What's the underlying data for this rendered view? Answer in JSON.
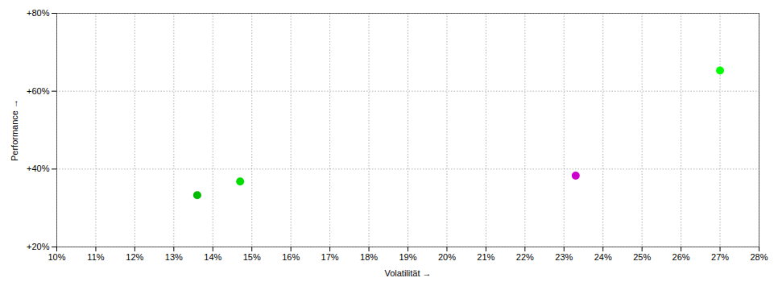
{
  "chart_data": {
    "type": "scatter",
    "xlabel": "Volatilität",
    "ylabel": "Performance",
    "x": [
      0.136,
      0.147,
      0.233,
      0.27
    ],
    "values": [
      0.333,
      0.368,
      0.383,
      0.653
    ],
    "colors": [
      "#00bb00",
      "#00dd00",
      "#cc00cc",
      "#00ff00"
    ],
    "xlim": [
      0.1,
      0.28
    ],
    "ylim": [
      0.2,
      0.8
    ],
    "xticks": [
      {
        "value": 0.1,
        "label": "10%"
      },
      {
        "value": 0.11,
        "label": "11%"
      },
      {
        "value": 0.12,
        "label": "12%"
      },
      {
        "value": 0.13,
        "label": "13%"
      },
      {
        "value": 0.14,
        "label": "14%"
      },
      {
        "value": 0.15,
        "label": "15%"
      },
      {
        "value": 0.16,
        "label": "16%"
      },
      {
        "value": 0.17,
        "label": "17%"
      },
      {
        "value": 0.18,
        "label": "18%"
      },
      {
        "value": 0.19,
        "label": "19%"
      },
      {
        "value": 0.2,
        "label": "20%"
      },
      {
        "value": 0.21,
        "label": "21%"
      },
      {
        "value": 0.22,
        "label": "22%"
      },
      {
        "value": 0.23,
        "label": "23%"
      },
      {
        "value": 0.24,
        "label": "24%"
      },
      {
        "value": 0.25,
        "label": "25%"
      },
      {
        "value": 0.26,
        "label": "26%"
      },
      {
        "value": 0.27,
        "label": "27%"
      },
      {
        "value": 0.28,
        "label": "28%"
      }
    ],
    "yticks": [
      {
        "value": 0.2,
        "label": "+20%"
      },
      {
        "value": 0.4,
        "label": "+40%"
      },
      {
        "value": 0.6,
        "label": "+60%"
      },
      {
        "value": 0.8,
        "label": "+80%"
      }
    ],
    "grid": true
  }
}
